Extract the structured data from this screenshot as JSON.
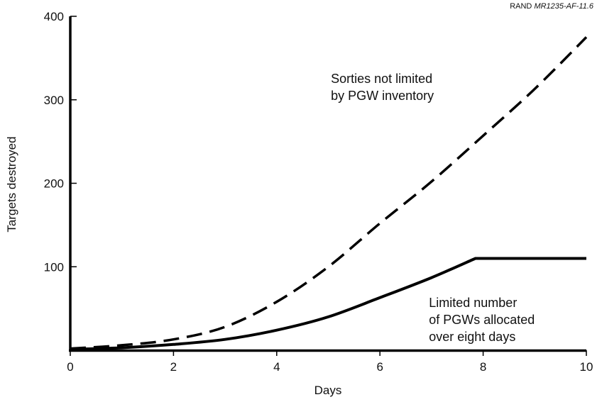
{
  "chart_data": {
    "type": "line",
    "source_prefix": "RAND ",
    "source_id": "MR1235-AF-11.6",
    "xlabel": "Days",
    "ylabel": "Targets destroyed",
    "xlim": [
      0,
      10
    ],
    "ylim": [
      0,
      400
    ],
    "x_ticks": [
      "0",
      "2",
      "4",
      "6",
      "8",
      "10"
    ],
    "y_ticks": [
      "100",
      "200",
      "300",
      "400"
    ],
    "grid": false,
    "series": [
      {
        "style": "dashed",
        "x": [
          0,
          1,
          2,
          3,
          4,
          5,
          6,
          7,
          8,
          9,
          10
        ],
        "y": [
          2,
          6,
          13,
          28,
          58,
          100,
          152,
          202,
          257,
          313,
          375
        ]
      },
      {
        "style": "solid",
        "x": [
          0,
          1,
          2,
          3,
          4,
          5,
          6,
          7,
          7.85,
          10
        ],
        "y": [
          1,
          3,
          7,
          13,
          24,
          40,
          63,
          87,
          110,
          110
        ]
      }
    ],
    "annotations": [
      {
        "lines": [
          "Sorties not limited",
          "by PGW inventory"
        ],
        "anchor": {
          "x": 5.05,
          "y": 320
        }
      },
      {
        "lines": [
          "Limited number",
          "of PGWs allocated",
          "over eight days"
        ],
        "anchor": {
          "x": 6.95,
          "y": 52
        }
      }
    ]
  }
}
